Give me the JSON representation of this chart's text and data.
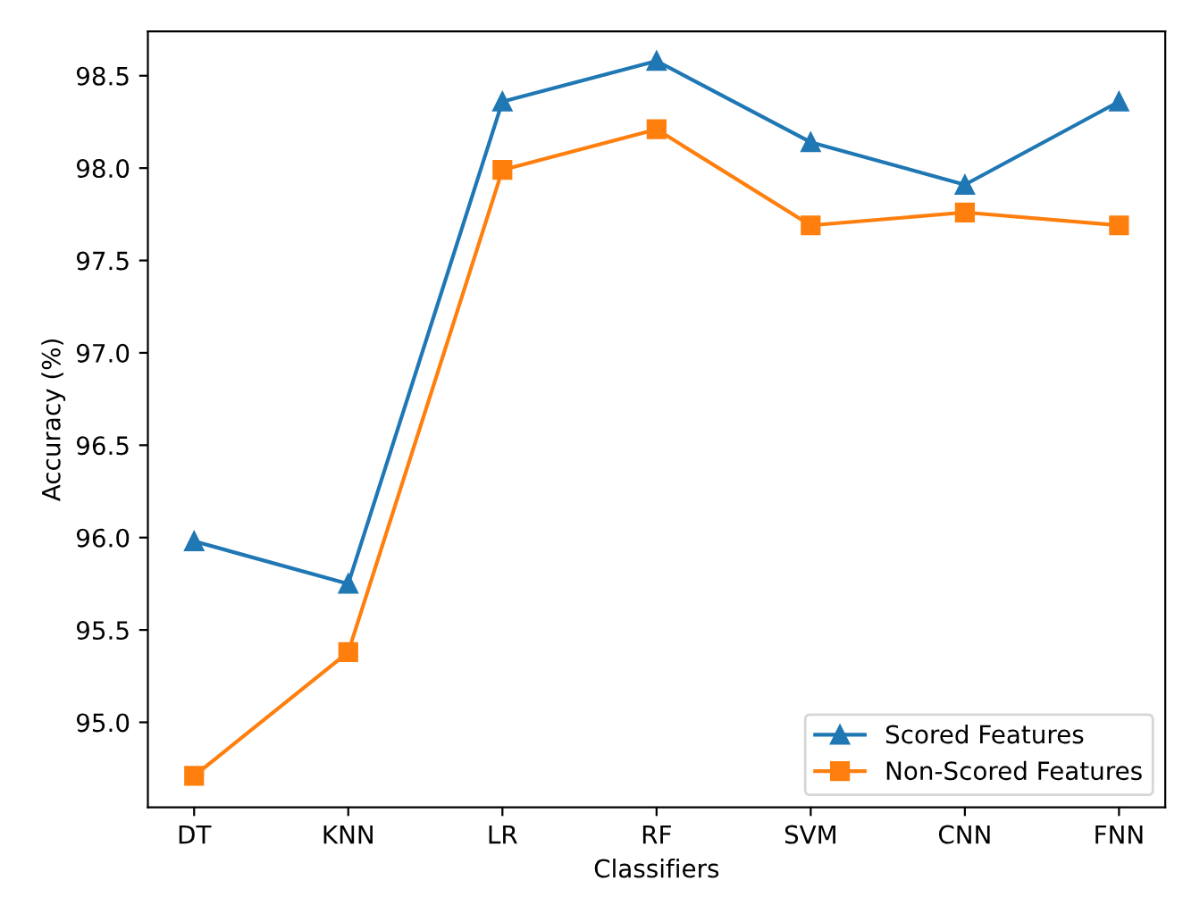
{
  "chart_data": {
    "type": "line",
    "xlabel": "Classifiers",
    "ylabel": "Accuracy (%)",
    "categories": [
      "DT",
      "KNN",
      "LR",
      "RF",
      "SVM",
      "CNN",
      "FNN"
    ],
    "series": [
      {
        "name": "Scored Features",
        "color": "#1f77b4",
        "marker": "triangle",
        "values": [
          95.98,
          95.75,
          98.36,
          98.58,
          98.14,
          97.91,
          98.36
        ]
      },
      {
        "name": "Non-Scored Features",
        "color": "#ff7f0e",
        "marker": "square",
        "values": [
          94.71,
          95.38,
          97.99,
          98.21,
          97.69,
          97.76,
          97.69
        ]
      }
    ],
    "ylim": [
      94.54,
      98.74
    ],
    "yticks": [
      {
        "value": 95.0,
        "label": "95.0"
      },
      {
        "value": 95.5,
        "label": "95.5"
      },
      {
        "value": 96.0,
        "label": "96.0"
      },
      {
        "value": 96.5,
        "label": "96.5"
      },
      {
        "value": 97.0,
        "label": "97.0"
      },
      {
        "value": 97.5,
        "label": "97.5"
      },
      {
        "value": 98.0,
        "label": "98.0"
      },
      {
        "value": 98.5,
        "label": "98.5"
      }
    ],
    "legend": "bottom right",
    "line_style": "solid"
  }
}
